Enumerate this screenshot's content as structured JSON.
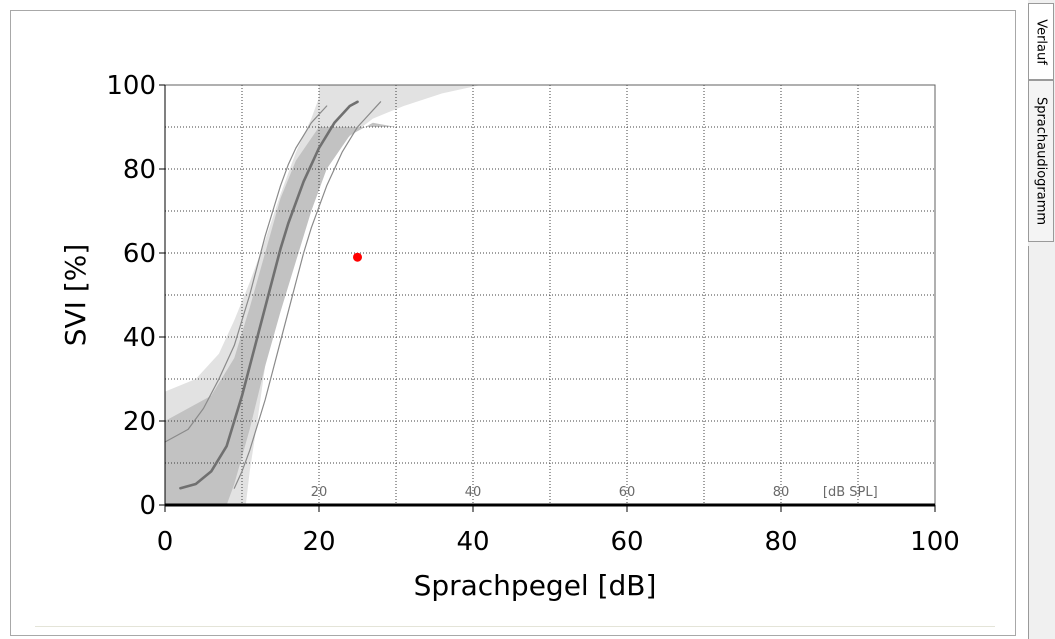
{
  "tabs": [
    {
      "label": "Verlauf",
      "active": true
    },
    {
      "label": "Sprachaudiogramm",
      "active": false
    }
  ],
  "chart_data": {
    "type": "line",
    "title": "",
    "xlabel": "Sprachpegel [dB]",
    "ylabel": "SVI [%]",
    "xlim": [
      0,
      100
    ],
    "ylim": [
      0,
      100
    ],
    "x_ticks": [
      0,
      20,
      40,
      60,
      80,
      100
    ],
    "y_ticks": [
      0,
      20,
      40,
      60,
      80,
      100
    ],
    "secondary_axis": {
      "unit_label": "[dB SPL]",
      "ticks": [
        {
          "label": "20",
          "at_x": 20
        },
        {
          "label": "40",
          "at_x": 40
        },
        {
          "label": "60",
          "at_x": 60
        },
        {
          "label": "80",
          "at_x": 80
        }
      ]
    },
    "grid": true,
    "colors": {
      "band_outer": "#e2e2e2",
      "band_inner": "#c2c2c2",
      "curve_main": "#707070",
      "curve_side": "#8a8a8a",
      "measurement": "#ff0000"
    },
    "bands": [
      {
        "role": "outer",
        "polygon": [
          [
            0,
            27
          ],
          [
            4,
            30
          ],
          [
            7,
            36
          ],
          [
            9,
            44
          ],
          [
            11,
            53
          ],
          [
            13,
            63
          ],
          [
            15,
            74
          ],
          [
            17,
            84
          ],
          [
            19,
            92
          ],
          [
            20,
            97
          ],
          [
            20,
            100
          ],
          [
            41,
            100
          ],
          [
            36,
            98
          ],
          [
            31,
            95
          ],
          [
            27,
            92
          ],
          [
            22,
            85
          ],
          [
            20,
            80
          ],
          [
            18,
            70
          ],
          [
            16,
            58
          ],
          [
            14,
            44
          ],
          [
            13,
            33
          ],
          [
            12,
            20
          ],
          [
            11,
            8
          ],
          [
            10.5,
            0
          ],
          [
            0,
            0
          ]
        ]
      },
      {
        "role": "inner",
        "polygon": [
          [
            0,
            20
          ],
          [
            6,
            26
          ],
          [
            9,
            35
          ],
          [
            11,
            47
          ],
          [
            13,
            60
          ],
          [
            15,
            73
          ],
          [
            17,
            82
          ],
          [
            20,
            90
          ],
          [
            30,
            90
          ],
          [
            27,
            91
          ],
          [
            24,
            88
          ],
          [
            21,
            80
          ],
          [
            19,
            70
          ],
          [
            17,
            58
          ],
          [
            15,
            46
          ],
          [
            13,
            33
          ],
          [
            11,
            18
          ],
          [
            9,
            5
          ],
          [
            8,
            0
          ],
          [
            0,
            0
          ]
        ]
      }
    ],
    "series": [
      {
        "role": "main",
        "x": [
          2,
          4,
          6,
          8,
          9,
          10,
          11,
          12,
          13,
          14,
          15,
          16,
          17,
          18,
          19,
          20,
          21,
          22,
          23,
          24,
          25
        ],
        "y": [
          4,
          5,
          8,
          14,
          20,
          26,
          33,
          40,
          47,
          54,
          61,
          67,
          72,
          77,
          81,
          85,
          88,
          91,
          93,
          95,
          96
        ]
      },
      {
        "role": "side",
        "x": [
          0,
          3,
          5,
          7,
          9,
          10,
          11,
          12,
          13,
          14,
          15,
          16,
          17,
          18,
          19,
          20,
          21
        ],
        "y": [
          15,
          18,
          23,
          30,
          38,
          44,
          50,
          57,
          64,
          70,
          76,
          81,
          85,
          88,
          91,
          93,
          95
        ]
      },
      {
        "role": "side",
        "x": [
          9,
          10,
          11,
          12,
          13,
          14,
          15,
          16,
          17,
          18,
          19,
          20,
          21,
          22,
          23,
          24,
          25,
          26,
          27,
          28
        ],
        "y": [
          4,
          8,
          13,
          19,
          25,
          32,
          39,
          46,
          53,
          60,
          66,
          71,
          76,
          80,
          84,
          87,
          90,
          92,
          94,
          96
        ]
      }
    ],
    "points": [
      {
        "x": 25,
        "y": 59
      }
    ]
  }
}
